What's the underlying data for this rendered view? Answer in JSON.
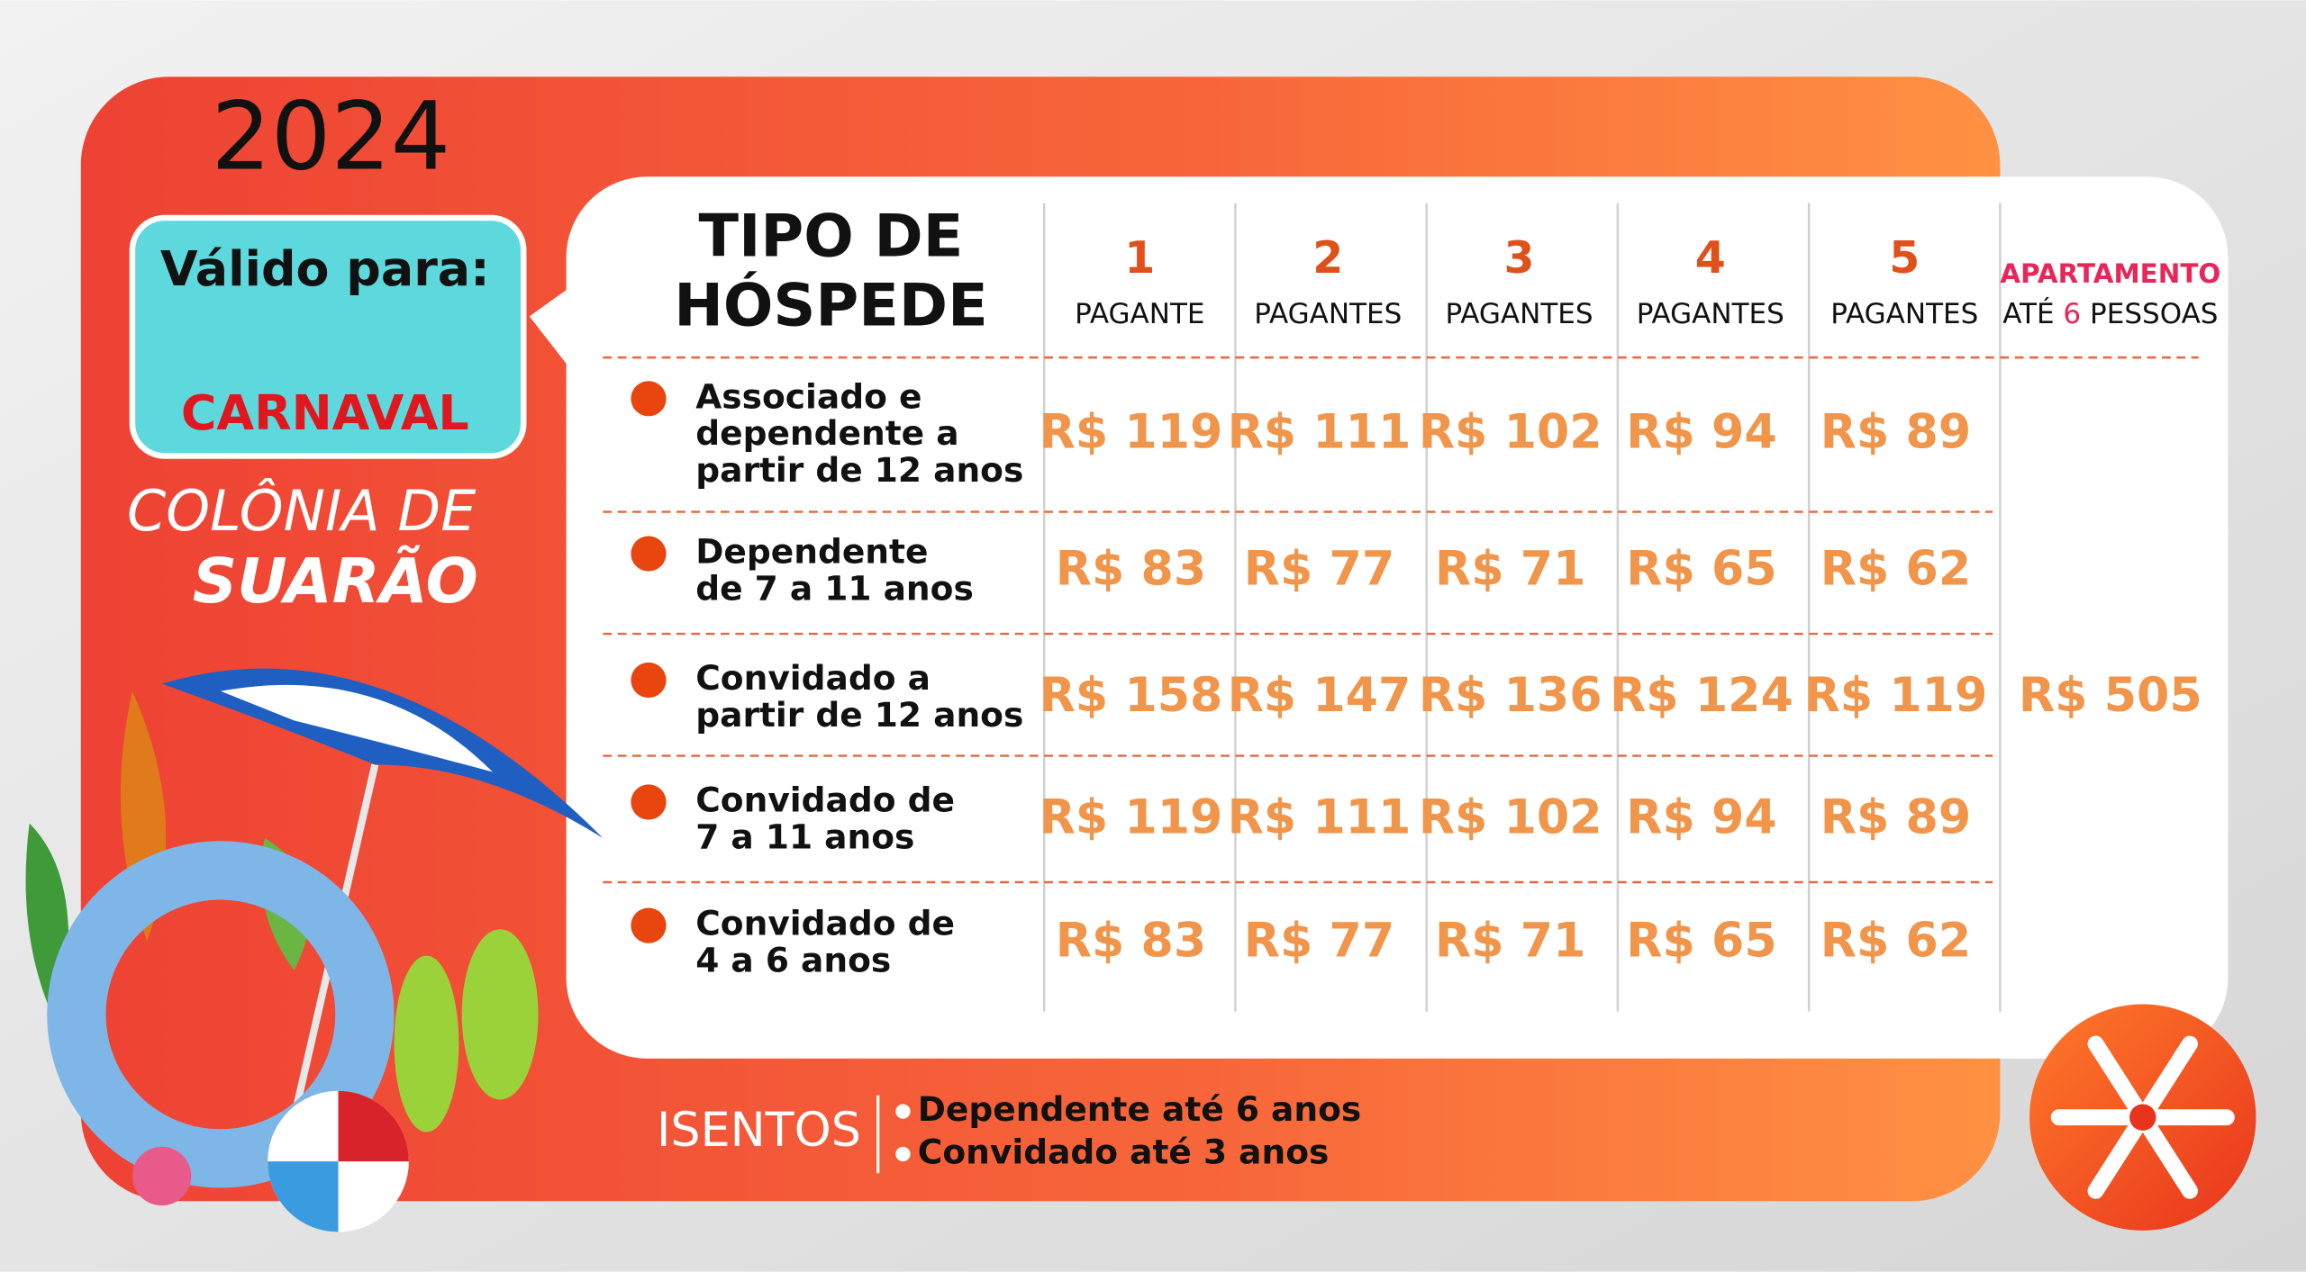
{
  "year": "2024",
  "valid": {
    "label": "Válido para:",
    "value": "CARNAVAL"
  },
  "brand": {
    "line1": "COLÔNIA DE",
    "line2": "SUARÃO"
  },
  "table": {
    "header": {
      "title": [
        "TIPO DE",
        "HÓSPEDE"
      ],
      "columns": [
        {
          "number": "1",
          "label": "PAGANTE"
        },
        {
          "number": "2",
          "label": "PAGANTES"
        },
        {
          "number": "3",
          "label": "PAGANTES"
        },
        {
          "number": "4",
          "label": "PAGANTES"
        },
        {
          "number": "5",
          "label": "PAGANTES"
        }
      ],
      "apartment": {
        "line1": "APARTAMENTO",
        "line2": [
          "ATÉ",
          "6",
          "PESSOAS"
        ]
      }
    },
    "rows": [
      {
        "lines": [
          "Associado e",
          "dependente a",
          "partir de 12 anos"
        ],
        "prices": [
          "R$ 119",
          "R$ 111",
          "R$ 102",
          "R$ 94",
          "R$ 89"
        ]
      },
      {
        "lines": [
          "Dependente",
          "de 7 a 11 anos"
        ],
        "prices": [
          "R$ 83",
          "R$ 77",
          "R$ 71",
          "R$ 65",
          "R$ 62"
        ]
      },
      {
        "lines": [
          "Convidado a",
          "partir de 12 anos"
        ],
        "prices": [
          "R$ 158",
          "R$ 147",
          "R$ 136",
          "R$ 124",
          "R$ 119"
        ]
      },
      {
        "lines": [
          "Convidado de",
          "7 a 11 anos"
        ],
        "prices": [
          "R$ 119",
          "R$ 111",
          "R$ 102",
          "R$ 94",
          "R$ 89"
        ]
      },
      {
        "lines": [
          "Convidado de",
          "4 a 6 anos"
        ],
        "prices": [
          "R$ 83",
          "R$ 77",
          "R$ 71",
          "R$ 65",
          "R$ 62"
        ]
      }
    ],
    "apartment_price": "R$ 505"
  },
  "exempt": {
    "label": "ISENTOS",
    "items": [
      "Dependente até 6 anos",
      "Convidado até 3 anos"
    ]
  }
}
